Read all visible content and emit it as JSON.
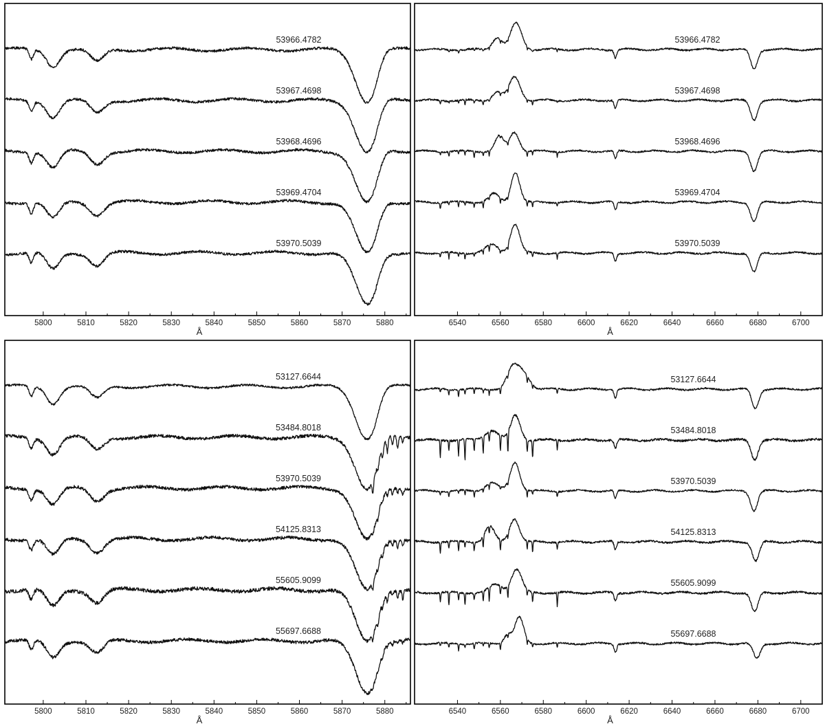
{
  "chart_data": [
    {
      "type": "line",
      "xlabel": "Å",
      "xlim": [
        5791,
        5886
      ],
      "xticks": [
        "5800",
        "5810",
        "5820",
        "5830",
        "5840",
        "5850",
        "5860",
        "5870",
        "5880"
      ],
      "series": [
        {
          "name": "53966.4782",
          "lines": [
            [
              5797.2,
              0.2,
              0.5
            ],
            [
              5802.3,
              0.32,
              1.5
            ],
            [
              5812.6,
              0.24,
              1.6
            ],
            [
              5875.9,
              1.0,
              2.6
            ]
          ],
          "noise": 0.025
        },
        {
          "name": "53967.4698",
          "lines": [
            [
              5797.2,
              0.2,
              0.5
            ],
            [
              5802.3,
              0.32,
              1.5
            ],
            [
              5812.6,
              0.24,
              1.6
            ],
            [
              5875.9,
              1.0,
              2.6
            ]
          ],
          "noise": 0.025
        },
        {
          "name": "53968.4696",
          "lines": [
            [
              5797.2,
              0.2,
              0.5
            ],
            [
              5802.3,
              0.32,
              1.5
            ],
            [
              5812.6,
              0.24,
              1.6
            ],
            [
              5875.9,
              1.0,
              2.6
            ]
          ],
          "noise": 0.025
        },
        {
          "name": "53969.4704",
          "lines": [
            [
              5797.2,
              0.2,
              0.5
            ],
            [
              5802.3,
              0.32,
              1.5
            ],
            [
              5812.6,
              0.24,
              1.6
            ],
            [
              5875.9,
              1.0,
              2.6
            ]
          ],
          "noise": 0.025
        },
        {
          "name": "53970.5039",
          "lines": [
            [
              5797.2,
              0.2,
              0.5
            ],
            [
              5802.3,
              0.32,
              1.5
            ],
            [
              5812.6,
              0.24,
              1.6
            ],
            [
              5875.9,
              1.0,
              2.6
            ]
          ],
          "noise": 0.025
        }
      ]
    },
    {
      "type": "line",
      "xlabel": "Å",
      "xlim": [
        6520,
        6710
      ],
      "xticks": [
        "6540",
        "6560",
        "6580",
        "6600",
        "6620",
        "6640",
        "6660",
        "6680",
        "6700"
      ],
      "series": [
        {
          "name": "53966.4782",
          "lines": [
            [
              6558.5,
              -0.45,
              2.2
            ],
            [
              6567.3,
              -0.95,
              2.6
            ],
            [
              6613.6,
              0.3,
              0.6
            ],
            [
              6678.2,
              0.7,
              1.6
            ]
          ],
          "noise": 0.03,
          "telluric": 0.15
        },
        {
          "name": "53967.4698",
          "lines": [
            [
              6558.5,
              -0.3,
              2.2
            ],
            [
              6566.6,
              -0.85,
              2.6
            ],
            [
              6613.6,
              0.3,
              0.6
            ],
            [
              6678.2,
              0.7,
              1.6
            ]
          ],
          "noise": 0.03,
          "telluric": 0.22
        },
        {
          "name": "53968.4696",
          "lines": [
            [
              6559.5,
              -0.55,
              2.0
            ],
            [
              6566.5,
              -0.7,
              2.2
            ],
            [
              6613.6,
              0.3,
              0.6
            ],
            [
              6678.2,
              0.7,
              1.6
            ]
          ],
          "noise": 0.03,
          "telluric": 0.28
        },
        {
          "name": "53969.4704",
          "lines": [
            [
              6557.0,
              -0.3,
              2.4
            ],
            [
              6567.0,
              -1.1,
              2.0
            ],
            [
              6613.6,
              0.3,
              0.6
            ],
            [
              6678.2,
              0.7,
              1.6
            ]
          ],
          "noise": 0.03,
          "telluric": 0.3
        },
        {
          "name": "53970.5039",
          "lines": [
            [
              6556.0,
              -0.3,
              3.0
            ],
            [
              6566.8,
              -1.05,
              2.2
            ],
            [
              6613.6,
              0.3,
              0.6
            ],
            [
              6678.2,
              0.7,
              1.6
            ]
          ],
          "noise": 0.03,
          "telluric": 0.3
        }
      ]
    },
    {
      "type": "line",
      "xlabel": "Å",
      "xlim": [
        5791,
        5886
      ],
      "xticks": [
        "5800",
        "5810",
        "5820",
        "5830",
        "5840",
        "5850",
        "5860",
        "5870",
        "5880"
      ],
      "series": [
        {
          "name": "53127.6644",
          "lines": [
            [
              5797.2,
              0.2,
              0.5
            ],
            [
              5802.3,
              0.32,
              1.5
            ],
            [
              5812.6,
              0.24,
              1.6
            ],
            [
              5875.9,
              1.0,
              2.6
            ]
          ],
          "noise": 0.02,
          "telluric": 0.0
        },
        {
          "name": "53484.8018",
          "lines": [
            [
              5797.2,
              0.2,
              0.5
            ],
            [
              5802.3,
              0.32,
              1.5
            ],
            [
              5812.6,
              0.24,
              1.6
            ],
            [
              5875.9,
              1.0,
              2.6
            ]
          ],
          "noise": 0.03,
          "telluric": 0.35
        },
        {
          "name": "53970.5039",
          "lines": [
            [
              5797.2,
              0.2,
              0.5
            ],
            [
              5802.3,
              0.32,
              1.5
            ],
            [
              5812.6,
              0.24,
              1.6
            ],
            [
              5875.9,
              1.0,
              2.6
            ]
          ],
          "noise": 0.03,
          "telluric": 0.18
        },
        {
          "name": "54125.8313",
          "lines": [
            [
              5797.2,
              0.2,
              0.5
            ],
            [
              5802.3,
              0.32,
              1.5
            ],
            [
              5812.6,
              0.24,
              1.6
            ],
            [
              5875.9,
              1.0,
              2.6
            ]
          ],
          "noise": 0.03,
          "telluric": 0.2
        },
        {
          "name": "55605.9099",
          "lines": [
            [
              5797.2,
              0.2,
              0.5
            ],
            [
              5802.3,
              0.32,
              1.5
            ],
            [
              5812.6,
              0.24,
              1.6
            ],
            [
              5875.9,
              1.0,
              2.6
            ]
          ],
          "noise": 0.035,
          "telluric": 0.22
        },
        {
          "name": "55697.6688",
          "lines": [
            [
              5797.2,
              0.2,
              0.5
            ],
            [
              5802.3,
              0.32,
              1.5
            ],
            [
              5812.6,
              0.24,
              1.6
            ],
            [
              5875.9,
              1.0,
              2.6
            ]
          ],
          "noise": 0.03,
          "telluric": 0.1
        }
      ]
    },
    {
      "type": "line",
      "xlabel": "Å",
      "xlim": [
        6520,
        6710
      ],
      "xticks": [
        "6540",
        "6560",
        "6580",
        "6600",
        "6620",
        "6640",
        "6660",
        "6680",
        "6700"
      ],
      "series": [
        {
          "name": "53127.6644",
          "lines": [
            [
              6565.5,
              -0.7,
              2.6
            ],
            [
              6570.5,
              -0.6,
              3.0
            ],
            [
              6613.6,
              0.3,
              0.6
            ],
            [
              6678.8,
              0.7,
              1.6
            ]
          ],
          "noise": 0.03,
          "telluric": 0.35
        },
        {
          "name": "53484.8018",
          "lines": [
            [
              6556.0,
              -0.35,
              3.0
            ],
            [
              6567.0,
              -0.9,
              2.2
            ],
            [
              6613.6,
              0.3,
              0.6
            ],
            [
              6678.5,
              0.7,
              1.6
            ]
          ],
          "noise": 0.04,
          "telluric": 1.0
        },
        {
          "name": "53970.5039",
          "lines": [
            [
              6556.0,
              -0.3,
              3.0
            ],
            [
              6566.8,
              -1.05,
              2.2
            ],
            [
              6613.6,
              0.3,
              0.6
            ],
            [
              6678.2,
              0.7,
              1.6
            ]
          ],
          "noise": 0.03,
          "telluric": 0.3
        },
        {
          "name": "54125.8313",
          "lines": [
            [
              6555.0,
              -0.55,
              2.2
            ],
            [
              6566.5,
              -0.85,
              2.2
            ],
            [
              6613.6,
              0.3,
              0.6
            ],
            [
              6679.0,
              0.7,
              1.6
            ]
          ],
          "noise": 0.035,
          "telluric": 0.55
        },
        {
          "name": "55605.9099",
          "lines": [
            [
              6558.0,
              -0.3,
              3.0
            ],
            [
              6567.5,
              -0.85,
              2.4
            ],
            [
              6613.6,
              0.3,
              0.6
            ],
            [
              6678.5,
              0.7,
              1.6
            ]
          ],
          "noise": 0.035,
          "telluric": 0.65
        },
        {
          "name": "55697.6688",
          "lines": [
            [
              6563.5,
              -0.35,
              1.8
            ],
            [
              6568.8,
              -0.95,
              2.0
            ],
            [
              6613.6,
              0.3,
              0.6
            ],
            [
              6679.5,
              0.55,
              1.6
            ]
          ],
          "noise": 0.03,
          "telluric": 0.3
        }
      ]
    }
  ]
}
